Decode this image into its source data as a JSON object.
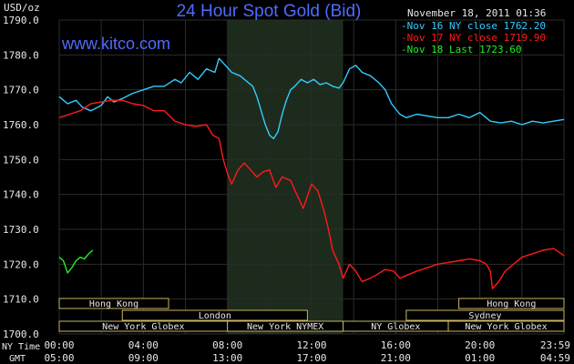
{
  "header": {
    "unit": "USD/oz",
    "title": "24 Hour Spot Gold (Bid)",
    "date": "November 18, 2011 01:36",
    "site": "www.kitco.com"
  },
  "legend": [
    {
      "label": "Nov 16 NY close 1762.20",
      "color": "#33ccff"
    },
    {
      "label": "Nov 17 NY close 1719.90",
      "color": "#ff1a1a"
    },
    {
      "label": "Nov 18 Last 1723.60",
      "color": "#22ee22"
    }
  ],
  "colors": {
    "background": "#000000",
    "grid": "#2b2b2b",
    "highlight": "#1d2b1d",
    "title": "#4d6cff",
    "site": "#4d6cff",
    "text": "#e8e8e8",
    "session_border": "#c8b460",
    "session_text": "#e8e8e8"
  },
  "time_axis": {
    "row1_label": "NY Time",
    "row2_label": "GMT",
    "ny_ticks": [
      "00:00",
      "04:00",
      "08:00",
      "12:00",
      "16:00",
      "20:00",
      "23:59"
    ],
    "gmt_ticks": [
      "05:00",
      "09:00",
      "13:00",
      "17:00",
      "21:00",
      "01:00",
      "04:59"
    ]
  },
  "sessions": [
    {
      "label": "Hong Kong",
      "start": 0,
      "end": 5.2,
      "row": 0
    },
    {
      "label": "London",
      "start": 3,
      "end": 11.8,
      "row": 1
    },
    {
      "label": "New York Globex",
      "start": 0,
      "end": 8,
      "row": 2
    },
    {
      "label": "New York NYMEX",
      "start": 8,
      "end": 13.5,
      "row": 2
    },
    {
      "label": "NY Globex",
      "start": 13.5,
      "end": 18.5,
      "row": 2
    },
    {
      "label": "Sydney",
      "start": 16.5,
      "end": 24,
      "row": 1
    },
    {
      "label": "Hong Kong",
      "start": 19,
      "end": 24,
      "row": 0
    },
    {
      "label": "New York Globex",
      "start": 18.5,
      "end": 24,
      "row": 2
    }
  ],
  "chart_data": {
    "type": "line",
    "title": "24 Hour Spot Gold (Bid)",
    "ylabel": "USD/oz",
    "ylim": [
      1700,
      1790
    ],
    "xlim": [
      0,
      24
    ],
    "y_ticks": [
      "1700.0",
      "1710.0",
      "1720.0",
      "1730.0",
      "1740.0",
      "1750.0",
      "1760.0",
      "1770.0",
      "1780.0",
      "1790.0"
    ],
    "highlight_range": [
      8,
      13.5
    ],
    "grid": true,
    "series": [
      {
        "name": "Nov 16 NY close 1762.20",
        "color": "#33ccff",
        "points": [
          [
            0,
            1768
          ],
          [
            0.4,
            1766
          ],
          [
            0.8,
            1767
          ],
          [
            1.1,
            1765
          ],
          [
            1.5,
            1764
          ],
          [
            2,
            1765.5
          ],
          [
            2.3,
            1768
          ],
          [
            2.6,
            1766.5
          ],
          [
            3,
            1767.5
          ],
          [
            3.5,
            1769
          ],
          [
            4,
            1770
          ],
          [
            4.5,
            1771
          ],
          [
            5,
            1771
          ],
          [
            5.5,
            1773
          ],
          [
            5.8,
            1772
          ],
          [
            6.2,
            1775
          ],
          [
            6.6,
            1773
          ],
          [
            7,
            1776
          ],
          [
            7.4,
            1775
          ],
          [
            7.6,
            1779
          ],
          [
            7.9,
            1777
          ],
          [
            8.2,
            1775
          ],
          [
            8.6,
            1774
          ],
          [
            9,
            1772
          ],
          [
            9.2,
            1771
          ],
          [
            9.4,
            1768
          ],
          [
            9.6,
            1764
          ],
          [
            9.8,
            1760
          ],
          [
            10,
            1757
          ],
          [
            10.2,
            1756
          ],
          [
            10.4,
            1758
          ],
          [
            10.6,
            1763
          ],
          [
            10.8,
            1767
          ],
          [
            11,
            1770
          ],
          [
            11.2,
            1771
          ],
          [
            11.5,
            1773
          ],
          [
            11.8,
            1772
          ],
          [
            12.1,
            1773
          ],
          [
            12.4,
            1771.5
          ],
          [
            12.7,
            1772
          ],
          [
            13,
            1771
          ],
          [
            13.3,
            1770.5
          ],
          [
            13.5,
            1772
          ],
          [
            13.8,
            1776
          ],
          [
            14.1,
            1777
          ],
          [
            14.4,
            1775
          ],
          [
            14.8,
            1774
          ],
          [
            15.2,
            1772
          ],
          [
            15.5,
            1770
          ],
          [
            15.8,
            1766
          ],
          [
            16.2,
            1763
          ],
          [
            16.5,
            1762
          ],
          [
            17,
            1763
          ],
          [
            17.5,
            1762.5
          ],
          [
            18,
            1762
          ],
          [
            18.5,
            1762
          ],
          [
            19,
            1763
          ],
          [
            19.5,
            1762
          ],
          [
            20,
            1763.5
          ],
          [
            20.5,
            1761
          ],
          [
            21,
            1760.5
          ],
          [
            21.5,
            1761
          ],
          [
            22,
            1760
          ],
          [
            22.5,
            1761
          ],
          [
            23,
            1760.5
          ],
          [
            23.5,
            1761
          ],
          [
            24,
            1761.5
          ]
        ]
      },
      {
        "name": "Nov 17 NY close 1719.90",
        "color": "#ff1a1a",
        "points": [
          [
            0,
            1762
          ],
          [
            0.5,
            1763
          ],
          [
            1,
            1764
          ],
          [
            1.5,
            1766
          ],
          [
            2,
            1766.5
          ],
          [
            2.5,
            1767
          ],
          [
            3,
            1767
          ],
          [
            3.5,
            1766
          ],
          [
            4,
            1765.5
          ],
          [
            4.5,
            1764
          ],
          [
            5,
            1764
          ],
          [
            5.5,
            1761
          ],
          [
            6,
            1760
          ],
          [
            6.5,
            1759.5
          ],
          [
            7,
            1760
          ],
          [
            7.3,
            1757
          ],
          [
            7.6,
            1756
          ],
          [
            7.8,
            1750
          ],
          [
            8,
            1746
          ],
          [
            8.2,
            1743
          ],
          [
            8.5,
            1747
          ],
          [
            8.8,
            1749
          ],
          [
            9.1,
            1747
          ],
          [
            9.4,
            1745
          ],
          [
            9.7,
            1746.5
          ],
          [
            10,
            1747
          ],
          [
            10.3,
            1742
          ],
          [
            10.6,
            1745
          ],
          [
            11,
            1744
          ],
          [
            11.3,
            1740
          ],
          [
            11.6,
            1736
          ],
          [
            12,
            1743
          ],
          [
            12.3,
            1741
          ],
          [
            12.6,
            1735
          ],
          [
            12.8,
            1730
          ],
          [
            13,
            1724
          ],
          [
            13.3,
            1720
          ],
          [
            13.5,
            1716
          ],
          [
            13.8,
            1720
          ],
          [
            14.1,
            1718
          ],
          [
            14.4,
            1715
          ],
          [
            14.8,
            1716
          ],
          [
            15.1,
            1717
          ],
          [
            15.5,
            1718.5
          ],
          [
            15.9,
            1718
          ],
          [
            16.2,
            1716
          ],
          [
            16.6,
            1717
          ],
          [
            17,
            1718
          ],
          [
            17.5,
            1719
          ],
          [
            18,
            1720
          ],
          [
            18.5,
            1720.5
          ],
          [
            19,
            1721
          ],
          [
            19.5,
            1721.5
          ],
          [
            20,
            1721
          ],
          [
            20.3,
            1720
          ],
          [
            20.5,
            1718
          ],
          [
            20.6,
            1713
          ],
          [
            20.9,
            1715
          ],
          [
            21.2,
            1718
          ],
          [
            21.6,
            1720
          ],
          [
            22,
            1722
          ],
          [
            22.5,
            1723
          ],
          [
            23,
            1724
          ],
          [
            23.5,
            1724.5
          ],
          [
            24,
            1722.5
          ]
        ]
      },
      {
        "name": "Nov 18 Last 1723.60",
        "color": "#22ee22",
        "points": [
          [
            0,
            1722
          ],
          [
            0.2,
            1721
          ],
          [
            0.4,
            1717.5
          ],
          [
            0.6,
            1719
          ],
          [
            0.8,
            1721
          ],
          [
            1,
            1722
          ],
          [
            1.2,
            1721.5
          ],
          [
            1.4,
            1723
          ],
          [
            1.6,
            1724
          ]
        ]
      }
    ]
  }
}
